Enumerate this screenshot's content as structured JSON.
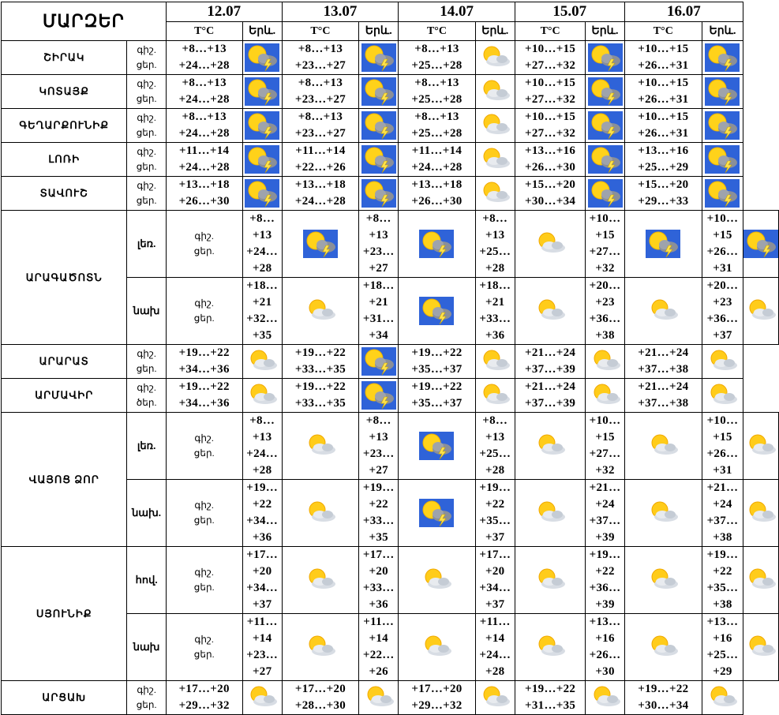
{
  "header": {
    "title": "ՄԱՐԶԵՐ",
    "dates": [
      "12.07",
      "13.07",
      "14.07",
      "15.07",
      "16.07"
    ],
    "temp_label": "T°C",
    "weather_label": "Երև."
  },
  "labels": {
    "night": "գիշ.",
    "day": "ցեր.",
    "day_alt": "ծեր."
  },
  "regions": [
    {
      "name": "ՇԻՐԱԿ",
      "rows": [
        {
          "sub": "",
          "day_label": "ցեր.",
          "days": [
            {
              "n": "+8…+13",
              "d": "+24…+28",
              "icon": "thunderstorm-icon"
            },
            {
              "n": "+8…+13",
              "d": "+23…+27",
              "icon": "thunderstorm-icon"
            },
            {
              "n": "+8…+13",
              "d": "+25…+28",
              "icon": "partly-cloudy-icon"
            },
            {
              "n": "+10…+15",
              "d": "+27…+32",
              "icon": "thunderstorm-icon"
            },
            {
              "n": "+10…+15",
              "d": "+26…+31",
              "icon": "thunderstorm-icon"
            }
          ]
        }
      ]
    },
    {
      "name": "ԿՈՏԱՅՔ",
      "rows": [
        {
          "sub": "",
          "day_label": "ցեր.",
          "days": [
            {
              "n": "+8…+13",
              "d": "+24…+28",
              "icon": "thunderstorm-icon"
            },
            {
              "n": "+8…+13",
              "d": "+23…+27",
              "icon": "thunderstorm-icon"
            },
            {
              "n": "+8…+13",
              "d": "+25…+28",
              "icon": "partly-cloudy-icon"
            },
            {
              "n": "+10…+15",
              "d": "+27…+32",
              "icon": "thunderstorm-icon"
            },
            {
              "n": "+10…+15",
              "d": "+26…+31",
              "icon": "thunderstorm-icon"
            }
          ]
        }
      ]
    },
    {
      "name": "ԳԵՂԱՐՔՈՒՆԻՔ",
      "rows": [
        {
          "sub": "",
          "day_label": "ցեր.",
          "days": [
            {
              "n": "+8…+13",
              "d": "+24…+28",
              "icon": "thunderstorm-icon"
            },
            {
              "n": "+8…+13",
              "d": "+23…+27",
              "icon": "thunderstorm-icon"
            },
            {
              "n": "+8…+13",
              "d": "+25…+28",
              "icon": "partly-cloudy-icon"
            },
            {
              "n": "+10…+15",
              "d": "+27…+32",
              "icon": "thunderstorm-icon"
            },
            {
              "n": "+10…+15",
              "d": "+26…+31",
              "icon": "thunderstorm-icon"
            }
          ]
        }
      ]
    },
    {
      "name": "ԼՈՌԻ",
      "rows": [
        {
          "sub": "",
          "day_label": "ցեր.",
          "days": [
            {
              "n": "+11…+14",
              "d": "+24…+28",
              "icon": "thunderstorm-icon"
            },
            {
              "n": "+11…+14",
              "d": "+22…+26",
              "icon": "thunderstorm-icon"
            },
            {
              "n": "+11…+14",
              "d": "+24…+28",
              "icon": "partly-cloudy-icon"
            },
            {
              "n": "+13…+16",
              "d": "+26…+30",
              "icon": "thunderstorm-icon"
            },
            {
              "n": "+13…+16",
              "d": "+25…+29",
              "icon": "thunderstorm-icon"
            }
          ]
        }
      ]
    },
    {
      "name": "ՏԱՎՈՒՇ",
      "rows": [
        {
          "sub": "",
          "day_label": "ցեր.",
          "days": [
            {
              "n": "+13…+18",
              "d": "+26…+30",
              "icon": "thunderstorm-icon"
            },
            {
              "n": "+13…+18",
              "d": "+24…+28",
              "icon": "thunderstorm-icon"
            },
            {
              "n": "+13…+18",
              "d": "+26…+30",
              "icon": "partly-cloudy-icon"
            },
            {
              "n": "+15…+20",
              "d": "+30…+34",
              "icon": "thunderstorm-icon"
            },
            {
              "n": "+15…+20",
              "d": "+29…+33",
              "icon": "thunderstorm-icon"
            }
          ]
        }
      ]
    },
    {
      "name": "ԱՐԱԳԱԾՈՏՆ",
      "rows": [
        {
          "sub": "լեռ.",
          "day_label": "ցեր.",
          "days": [
            {
              "n": "+8…+13",
              "d": "+24…+28",
              "icon": "thunderstorm-icon"
            },
            {
              "n": "+8…+13",
              "d": "+23…+27",
              "icon": "thunderstorm-icon"
            },
            {
              "n": "+8…+13",
              "d": "+25…+28",
              "icon": "partly-cloudy-icon"
            },
            {
              "n": "+10…+15",
              "d": "+27…+32",
              "icon": "thunderstorm-icon"
            },
            {
              "n": "+10…+15",
              "d": "+26…+31",
              "icon": "thunderstorm-icon"
            }
          ]
        },
        {
          "sub": "նախ",
          "day_label": "ցեր.",
          "days": [
            {
              "n": "+18…+21",
              "d": "+32…+35",
              "icon": "partly-cloudy-icon"
            },
            {
              "n": "+18…+21",
              "d": "+31…+34",
              "icon": "thunderstorm-icon"
            },
            {
              "n": "+18…+21",
              "d": "+33…+36",
              "icon": "partly-cloudy-icon"
            },
            {
              "n": "+20…+23",
              "d": "+36…+38",
              "icon": "partly-cloudy-icon"
            },
            {
              "n": "+20…+23",
              "d": "+36…+37",
              "icon": "partly-cloudy-icon"
            }
          ]
        }
      ]
    },
    {
      "name": "ԱՐԱՐԱՏ",
      "rows": [
        {
          "sub": "",
          "day_label": "ցեր.",
          "days": [
            {
              "n": "+19…+22",
              "d": "+34…+36",
              "icon": "partly-cloudy-icon"
            },
            {
              "n": "+19…+22",
              "d": "+33…+35",
              "icon": "thunderstorm-icon"
            },
            {
              "n": "+19…+22",
              "d": "+35…+37",
              "icon": "partly-cloudy-icon"
            },
            {
              "n": "+21…+24",
              "d": "+37…+39",
              "icon": "partly-cloudy-icon"
            },
            {
              "n": "+21…+24",
              "d": "+37…+38",
              "icon": "partly-cloudy-icon"
            }
          ]
        }
      ]
    },
    {
      "name": "ԱՐՄԱՎԻՐ",
      "rows": [
        {
          "sub": "",
          "day_label": "ծեր.",
          "days": [
            {
              "n": "+19…+22",
              "d": "+34…+36",
              "icon": "partly-cloudy-icon"
            },
            {
              "n": "+19…+22",
              "d": "+33…+35",
              "icon": "thunderstorm-icon"
            },
            {
              "n": "+19…+22",
              "d": "+35…+37",
              "icon": "partly-cloudy-icon"
            },
            {
              "n": "+21…+24",
              "d": "+37…+39",
              "icon": "partly-cloudy-icon"
            },
            {
              "n": "+21…+24",
              "d": "+37…+38",
              "icon": "partly-cloudy-icon"
            }
          ]
        }
      ]
    },
    {
      "name": "ՎԱՅՈՑ ՁՈՐ",
      "rows": [
        {
          "sub": "լեռ.",
          "day_label": "ցեր.",
          "days": [
            {
              "n": "+8…+13",
              "d": "+24…+28",
              "icon": "partly-cloudy-icon"
            },
            {
              "n": "+8…+13",
              "d": "+23…+27",
              "icon": "thunderstorm-icon"
            },
            {
              "n": "+8…+13",
              "d": "+25…+28",
              "icon": "partly-cloudy-icon"
            },
            {
              "n": "+10…+15",
              "d": "+27…+32",
              "icon": "partly-cloudy-icon"
            },
            {
              "n": "+10…+15",
              "d": "+26…+31",
              "icon": "partly-cloudy-icon"
            }
          ]
        },
        {
          "sub": "նախ.",
          "day_label": "ցեր.",
          "days": [
            {
              "n": "+19…+22",
              "d": "+34…+36",
              "icon": "partly-cloudy-icon"
            },
            {
              "n": "+19…+22",
              "d": "+33…+35",
              "icon": "thunderstorm-icon"
            },
            {
              "n": "+19…+22",
              "d": "+35…+37",
              "icon": "partly-cloudy-icon"
            },
            {
              "n": "+21…+24",
              "d": "+37…+39",
              "icon": "partly-cloudy-icon"
            },
            {
              "n": "+21…+24",
              "d": "+37…+38",
              "icon": "partly-cloudy-icon"
            }
          ]
        }
      ]
    },
    {
      "name": "ՍՅՈՒՆԻՔ",
      "rows": [
        {
          "sub": "հով.",
          "day_label": "ցեր.",
          "days": [
            {
              "n": "+17…+20",
              "d": "+34…+37",
              "icon": "partly-cloudy-icon"
            },
            {
              "n": "+17…+20",
              "d": "+33…+36",
              "icon": "partly-cloudy-icon"
            },
            {
              "n": "+17…+20",
              "d": "+34…+37",
              "icon": "partly-cloudy-icon"
            },
            {
              "n": "+19…+22",
              "d": "+36…+39",
              "icon": "partly-cloudy-icon"
            },
            {
              "n": "+19…+22",
              "d": "+35…+38",
              "icon": "partly-cloudy-icon"
            }
          ]
        },
        {
          "sub": "նախ",
          "day_label": "ցեր.",
          "days": [
            {
              "n": "+11…+14",
              "d": "+23…+27",
              "icon": "partly-cloudy-icon"
            },
            {
              "n": "+11…+14",
              "d": "+22…+26",
              "icon": "partly-cloudy-icon"
            },
            {
              "n": "+11…+14",
              "d": "+24…+28",
              "icon": "partly-cloudy-icon"
            },
            {
              "n": "+13…+16",
              "d": "+26…+30",
              "icon": "partly-cloudy-icon"
            },
            {
              "n": "+13…+16",
              "d": "+25…+29",
              "icon": "partly-cloudy-icon"
            }
          ]
        }
      ]
    },
    {
      "name": "ԱՐՑԱԽ",
      "rows": [
        {
          "sub": "",
          "day_label": "ցեր.",
          "days": [
            {
              "n": "+17…+20",
              "d": "+29…+32",
              "icon": "partly-cloudy-icon"
            },
            {
              "n": "+17…+20",
              "d": "+28…+30",
              "icon": "partly-cloudy-icon"
            },
            {
              "n": "+17…+20",
              "d": "+29…+32",
              "icon": "partly-cloudy-icon"
            },
            {
              "n": "+19…+22",
              "d": "+31…+35",
              "icon": "partly-cloudy-icon"
            },
            {
              "n": "+19…+22",
              "d": "+30…+34",
              "icon": "partly-cloudy-icon"
            }
          ]
        }
      ]
    }
  ]
}
